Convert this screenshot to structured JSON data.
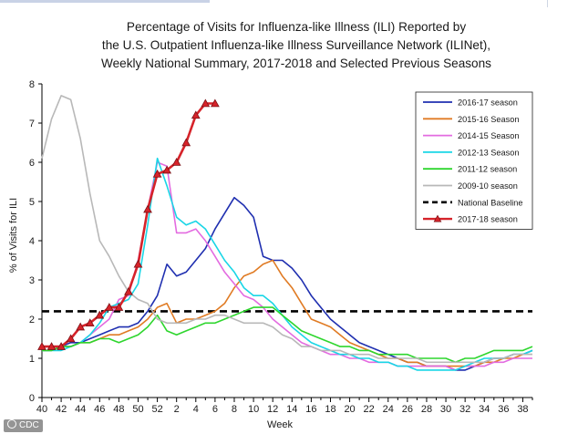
{
  "title_lines": [
    "Percentage of Visits for Influenza-like Illness (ILI) Reported by",
    "the U.S. Outpatient Influenza-like Illness Surveillance Network (ILINet),",
    "Weekly National Summary, 2017-2018 and Selected Previous Seasons"
  ],
  "credit": "CDC",
  "chart_data": {
    "type": "line",
    "xlabel": "Week",
    "ylabel": "% of Visits for ILI",
    "ylim": [
      0,
      8
    ],
    "yticks": [
      0,
      1,
      2,
      3,
      4,
      5,
      6,
      7,
      8
    ],
    "x_tick_labels": [
      "40",
      "42",
      "44",
      "46",
      "48",
      "50",
      "52",
      "2",
      "4",
      "6",
      "8",
      "10",
      "12",
      "14",
      "16",
      "18",
      "20",
      "22",
      "24",
      "26",
      "28",
      "30",
      "32",
      "34",
      "36",
      "38"
    ],
    "x_count": 52,
    "grid": false,
    "legend_position": "top-right",
    "baseline": {
      "name": "National Baseline",
      "value": 2.2,
      "color": "#000000",
      "style": "dashed"
    },
    "series": [
      {
        "name": "2016-17 season",
        "color": "#1f2fb0",
        "values": [
          1.3,
          1.3,
          1.3,
          1.4,
          1.4,
          1.5,
          1.6,
          1.7,
          1.8,
          1.8,
          1.9,
          2.2,
          2.6,
          3.4,
          3.1,
          3.2,
          3.5,
          3.8,
          4.3,
          4.7,
          5.1,
          4.9,
          4.6,
          3.6,
          3.5,
          3.5,
          3.3,
          3.0,
          2.6,
          2.3,
          2.0,
          1.8,
          1.6,
          1.4,
          1.3,
          1.2,
          1.1,
          1.0,
          0.9,
          0.9,
          0.8,
          0.8,
          0.8,
          0.7,
          0.7,
          0.8,
          0.9,
          1.0,
          1.0,
          1.1,
          1.1,
          1.2
        ]
      },
      {
        "name": "2015-16 Season",
        "color": "#e07b24",
        "values": [
          1.2,
          1.2,
          1.3,
          1.3,
          1.4,
          1.4,
          1.5,
          1.6,
          1.6,
          1.7,
          1.8,
          2.0,
          2.3,
          2.4,
          1.9,
          2.0,
          2.0,
          2.1,
          2.2,
          2.4,
          2.8,
          3.1,
          3.2,
          3.4,
          3.5,
          3.1,
          2.8,
          2.4,
          2.0,
          1.9,
          1.8,
          1.6,
          1.4,
          1.3,
          1.2,
          1.1,
          1.0,
          1.0,
          0.9,
          0.9,
          0.8,
          0.8,
          0.8,
          0.8,
          0.8,
          0.8,
          0.9,
          0.9,
          1.0,
          1.0,
          1.1,
          1.1
        ]
      },
      {
        "name": "2014-15 Season",
        "color": "#e36be0",
        "values": [
          1.2,
          1.2,
          1.3,
          1.3,
          1.4,
          1.6,
          1.8,
          2.0,
          2.5,
          2.6,
          3.5,
          4.8,
          6.0,
          5.9,
          4.2,
          4.2,
          4.3,
          4.0,
          3.6,
          3.2,
          2.9,
          2.6,
          2.5,
          2.3,
          2.0,
          1.8,
          1.6,
          1.4,
          1.3,
          1.2,
          1.1,
          1.1,
          1.0,
          1.0,
          0.9,
          0.9,
          0.9,
          0.8,
          0.8,
          0.8,
          0.8,
          0.8,
          0.8,
          0.7,
          0.8,
          0.8,
          0.8,
          0.9,
          0.9,
          1.0,
          1.0,
          1.0
        ]
      },
      {
        "name": "2012-13 Season",
        "color": "#19d6e6",
        "values": [
          1.2,
          1.2,
          1.2,
          1.3,
          1.4,
          1.6,
          1.9,
          2.3,
          2.4,
          2.5,
          2.9,
          4.4,
          6.1,
          5.4,
          4.6,
          4.4,
          4.5,
          4.3,
          3.9,
          3.5,
          3.2,
          2.8,
          2.6,
          2.6,
          2.4,
          2.1,
          1.8,
          1.6,
          1.4,
          1.3,
          1.2,
          1.1,
          1.1,
          1.0,
          1.0,
          0.9,
          0.9,
          0.8,
          0.8,
          0.7,
          0.7,
          0.7,
          0.7,
          0.7,
          0.8,
          0.9,
          1.0,
          1.0,
          1.0,
          1.1,
          1.1,
          1.2
        ]
      },
      {
        "name": "2011-12 season",
        "color": "#2ed62e",
        "values": [
          1.2,
          1.2,
          1.3,
          1.3,
          1.4,
          1.4,
          1.5,
          1.5,
          1.4,
          1.5,
          1.6,
          1.8,
          2.1,
          1.7,
          1.6,
          1.7,
          1.8,
          1.9,
          1.9,
          2.0,
          2.1,
          2.2,
          2.3,
          2.3,
          2.3,
          2.1,
          1.9,
          1.7,
          1.6,
          1.5,
          1.4,
          1.3,
          1.3,
          1.2,
          1.2,
          1.1,
          1.1,
          1.1,
          1.1,
          1.0,
          1.0,
          1.0,
          1.0,
          0.9,
          1.0,
          1.0,
          1.1,
          1.2,
          1.2,
          1.2,
          1.2,
          1.3
        ]
      },
      {
        "name": "2009-10 season",
        "color": "#b8b8b8",
        "values": [
          6.1,
          7.1,
          7.7,
          7.6,
          6.6,
          5.2,
          4.0,
          3.6,
          3.1,
          2.7,
          2.5,
          2.4,
          2.0,
          1.9,
          1.9,
          1.9,
          2.0,
          2.0,
          2.1,
          2.1,
          2.0,
          1.9,
          1.9,
          1.9,
          1.8,
          1.6,
          1.5,
          1.3,
          1.3,
          1.2,
          1.2,
          1.2,
          1.1,
          1.1,
          1.1,
          1.0,
          1.0,
          1.0,
          1.0,
          1.0,
          0.9,
          0.9,
          0.9,
          0.9,
          0.9,
          0.9,
          0.9,
          1.0,
          1.0,
          1.1,
          1.1,
          1.1
        ]
      },
      {
        "name": "2017-18 season",
        "color": "#d6232a",
        "marker": "triangle",
        "marker_fill": "#d6232a",
        "values": [
          1.3,
          1.3,
          1.3,
          1.5,
          1.8,
          1.9,
          2.1,
          2.3,
          2.3,
          2.7,
          3.4,
          4.8,
          5.7,
          5.8,
          6.0,
          6.5,
          7.2,
          7.5,
          7.5
        ]
      }
    ]
  }
}
